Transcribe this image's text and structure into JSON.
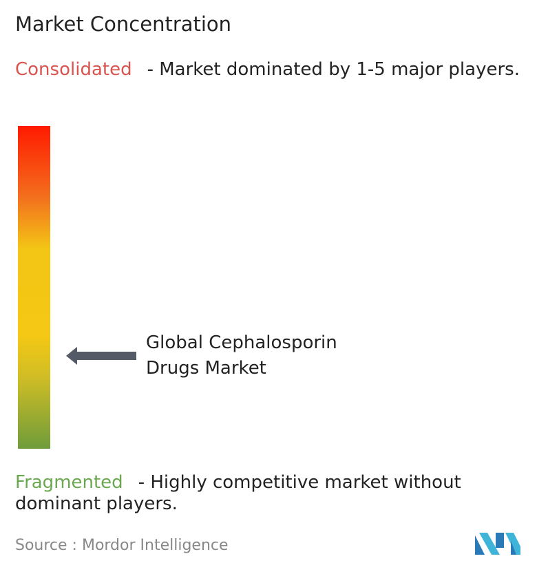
{
  "title": "Market Concentration",
  "consolidated": {
    "label": "Consolidated",
    "description": "- Market dominated by 1-5 major players."
  },
  "market": {
    "label": "Global Cephalosporin Drugs Market"
  },
  "fragmented": {
    "label": "Fragmented",
    "description": "- Highly competitive market without dominant players."
  },
  "source": "Source :  Mordor Intelligence"
}
